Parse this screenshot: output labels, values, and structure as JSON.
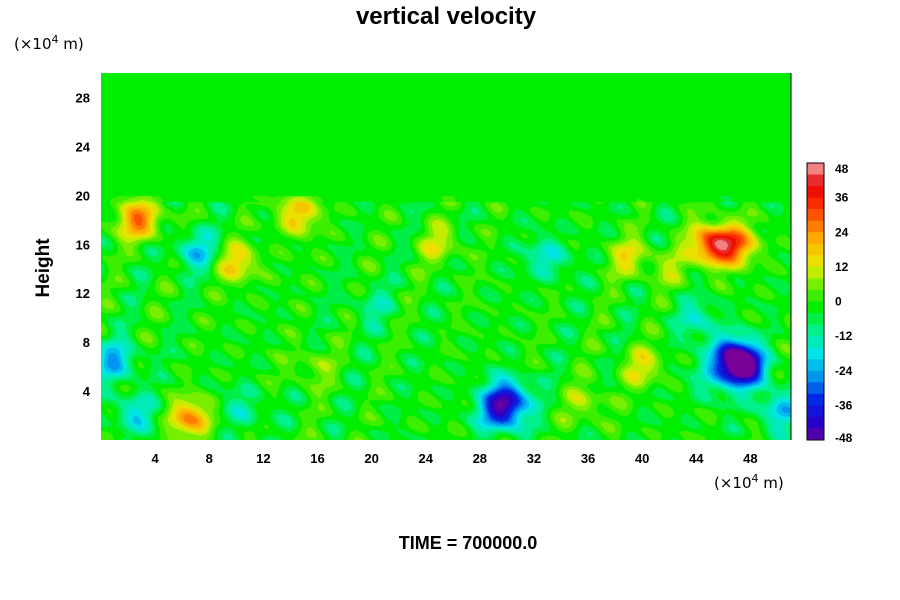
{
  "chart_data": {
    "type": "heatmap",
    "title": "vertical velocity",
    "ylabel": "Height",
    "y_unit": {
      "prefix": "(×10",
      "exp": "4",
      "suffix": " m)"
    },
    "x_unit": {
      "prefix": "(×10",
      "exp": "4",
      "suffix": " m)"
    },
    "xlim": [
      0,
      51
    ],
    "ylim": [
      0,
      30
    ],
    "xticks": [
      4,
      8,
      12,
      16,
      20,
      24,
      28,
      32,
      36,
      40,
      44,
      48
    ],
    "yticks": [
      4,
      8,
      12,
      16,
      20,
      24,
      28
    ],
    "colorbar": {
      "range": [
        -48,
        48
      ],
      "step": 4,
      "ticks": [
        48,
        36,
        24,
        12,
        0,
        -12,
        -24,
        -36,
        -48
      ]
    },
    "features": [
      {
        "x": 47.5,
        "y": 6.0,
        "value": -48
      },
      {
        "x": 46.5,
        "y": 7.0,
        "value": -30
      },
      {
        "x": 30.0,
        "y": 3.5,
        "value": -30
      },
      {
        "x": 29.5,
        "y": 2.2,
        "value": -28
      },
      {
        "x": 45.3,
        "y": 16.0,
        "value": 40
      },
      {
        "x": 47.0,
        "y": 16.0,
        "value": 22
      },
      {
        "x": 6.5,
        "y": 1.8,
        "value": 26
      },
      {
        "x": 2.8,
        "y": 18.0,
        "value": 28
      },
      {
        "x": 40.0,
        "y": 6.0,
        "value": 14
      },
      {
        "x": 36.0,
        "y": 3.0,
        "value": 10
      },
      {
        "x": 15.5,
        "y": 6.0,
        "value": 8
      },
      {
        "x": 1.0,
        "y": 6.5,
        "value": -20
      },
      {
        "x": 2.5,
        "y": 2.2,
        "value": -16
      },
      {
        "x": 10.5,
        "y": 2.5,
        "value": -10
      },
      {
        "x": 14.5,
        "y": 18.5,
        "value": 20
      },
      {
        "x": 10.0,
        "y": 14.5,
        "value": 18
      },
      {
        "x": 7.0,
        "y": 15.5,
        "value": -18
      },
      {
        "x": 39.0,
        "y": 15.0,
        "value": 14
      },
      {
        "x": 33.0,
        "y": 15.0,
        "value": -14
      },
      {
        "x": 42.0,
        "y": 14.0,
        "value": 8
      },
      {
        "x": 50.0,
        "y": 2.5,
        "value": -18
      },
      {
        "x": 45.0,
        "y": 5.0,
        "value": -10
      },
      {
        "x": 44.0,
        "y": 10.0,
        "value": -12
      },
      {
        "x": 25.0,
        "y": 16.0,
        "value": 12
      },
      {
        "x": 20.0,
        "y": 11.0,
        "value": -8
      }
    ],
    "grid": false
  },
  "footer": {
    "time_label": "TIME = 700000.0"
  }
}
